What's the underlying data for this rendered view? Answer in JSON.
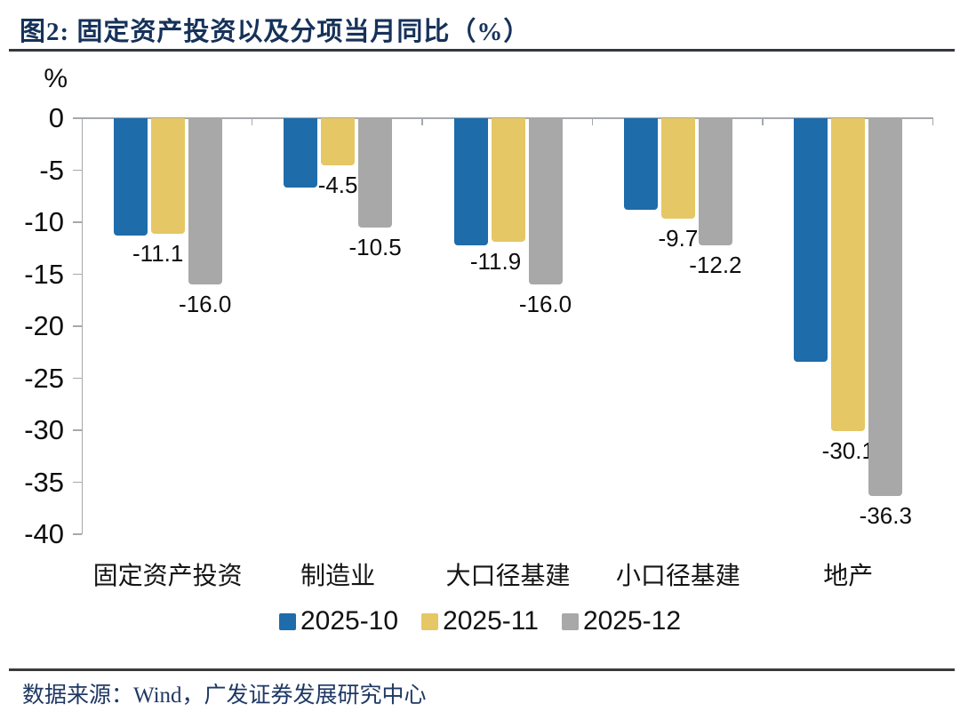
{
  "header": {
    "title": "图2:  固定资产投资以及分项当月同比（%）"
  },
  "chart_data": {
    "type": "bar",
    "title": "固定资产投资以及分项当月同比（%）",
    "unit": "%",
    "categories": [
      "固定资产投资",
      "制造业",
      "大口径基建",
      "小口径基建",
      "地产"
    ],
    "series": [
      {
        "name": "2025-10",
        "color": "#1E6CAA",
        "data_labels_shown": false,
        "values": [
          -11.3,
          -6.7,
          -12.2,
          -8.8,
          -23.4
        ]
      },
      {
        "name": "2025-11",
        "color": "#E5C765",
        "data_labels_shown": true,
        "values": [
          -11.1,
          -4.5,
          -11.9,
          -9.7,
          -30.1
        ]
      },
      {
        "name": "2025-12",
        "color": "#A8A8A8",
        "data_labels_shown": true,
        "values": [
          -16.0,
          -10.5,
          -16.0,
          -12.2,
          -36.3
        ]
      }
    ],
    "ylim": [
      -40,
      0
    ],
    "ytick_step": 5,
    "yticks": [
      0,
      -5,
      -10,
      -15,
      -20,
      -25,
      -30,
      -35,
      -40
    ],
    "grid": false,
    "legend_position": "bottom"
  },
  "footer": {
    "source": "数据来源：Wind，广发证券发展研究中心"
  }
}
